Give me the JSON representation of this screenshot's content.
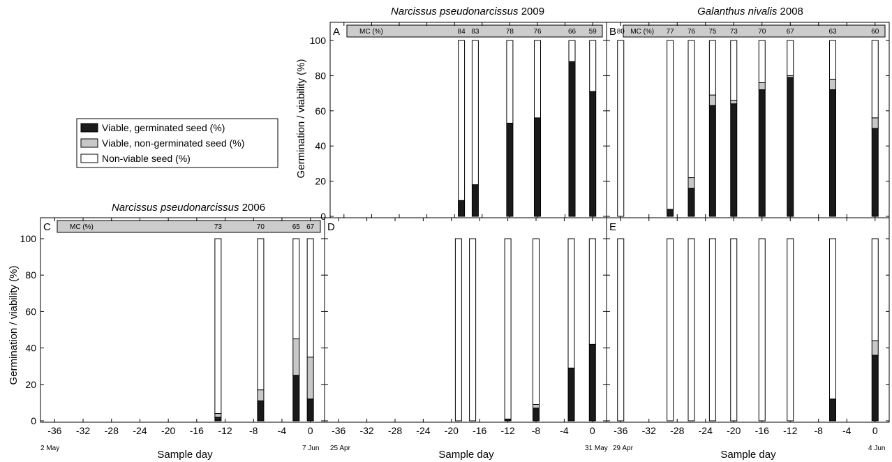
{
  "chart_data": {
    "type": "bar",
    "stack_order": [
      "Viable, germinated seed (%)",
      "Viable, non-germinated seed (%)",
      "Non-viable seed (%)"
    ],
    "colors": {
      "germinated": "#1a1a1a",
      "nongerminated": "#c8c8c8",
      "nonviable": "#ffffff",
      "mcbox": "#cccccc"
    },
    "legend": [
      "Viable, germinated seed (%)",
      "Viable, non-germinated seed (%)",
      "Non-viable seed (%)"
    ],
    "ylabel": "Germination / viability (%)",
    "xlabel": "Sample day",
    "ylim": [
      0,
      100
    ],
    "yticks": [
      0,
      20,
      40,
      60,
      80,
      100
    ],
    "xlim": [
      -38,
      2
    ],
    "xticks": [
      -36,
      -32,
      -28,
      -24,
      -20,
      -16,
      -12,
      -8,
      -4,
      0
    ],
    "titles": {
      "narc2009_species": "Narcissus pseudonarcissus",
      "narc2009_year": "2009",
      "gal2008_species": "Galanthus nivalis",
      "gal2008_year": "2008",
      "narc2006_species": "Narcissus pseudonarcissus",
      "narc2006_year": "2006"
    },
    "panels": [
      {
        "id": "A",
        "mc_label": "MC (%)",
        "mc": [
          {
            "x": -19,
            "v": "84"
          },
          {
            "x": -17,
            "v": "83"
          },
          {
            "x": -12,
            "v": "78"
          },
          {
            "x": -8,
            "v": "76"
          },
          {
            "x": -3,
            "v": "66"
          },
          {
            "x": 0,
            "v": "59"
          }
        ],
        "bars": [
          {
            "x": -19,
            "germinated": 9,
            "nongerminated": 0,
            "nonviable": 91
          },
          {
            "x": -17,
            "germinated": 18,
            "nongerminated": 0,
            "nonviable": 82
          },
          {
            "x": -12,
            "germinated": 53,
            "nongerminated": 0,
            "nonviable": 47
          },
          {
            "x": -8,
            "germinated": 56,
            "nongerminated": 0,
            "nonviable": 44
          },
          {
            "x": -3,
            "germinated": 88,
            "nongerminated": 0,
            "nonviable": 12
          },
          {
            "x": 0,
            "germinated": 71,
            "nongerminated": 0,
            "nonviable": 29
          }
        ]
      },
      {
        "id": "B",
        "mc_label": "MC (%)",
        "mc": [
          {
            "x": -36,
            "v": "80"
          },
          {
            "x": -29,
            "v": "77"
          },
          {
            "x": -26,
            "v": "76"
          },
          {
            "x": -23,
            "v": "75"
          },
          {
            "x": -20,
            "v": "73"
          },
          {
            "x": -16,
            "v": "70"
          },
          {
            "x": -12,
            "v": "67"
          },
          {
            "x": -6,
            "v": "63"
          },
          {
            "x": 0,
            "v": "60"
          }
        ],
        "bars": [
          {
            "x": -36,
            "germinated": 0,
            "nongerminated": 0,
            "nonviable": 100
          },
          {
            "x": -29,
            "germinated": 4,
            "nongerminated": 0,
            "nonviable": 96
          },
          {
            "x": -26,
            "germinated": 16,
            "nongerminated": 6,
            "nonviable": 78
          },
          {
            "x": -23,
            "germinated": 63,
            "nongerminated": 6,
            "nonviable": 31
          },
          {
            "x": -20,
            "germinated": 64,
            "nongerminated": 2,
            "nonviable": 34
          },
          {
            "x": -16,
            "germinated": 72,
            "nongerminated": 4,
            "nonviable": 24
          },
          {
            "x": -12,
            "germinated": 79,
            "nongerminated": 1,
            "nonviable": 20
          },
          {
            "x": -6,
            "germinated": 72,
            "nongerminated": 6,
            "nonviable": 22
          },
          {
            "x": 0,
            "germinated": 50,
            "nongerminated": 6,
            "nonviable": 44
          }
        ]
      },
      {
        "id": "C",
        "mc_label": "MC (%)",
        "mc": [
          {
            "x": -13,
            "v": "73"
          },
          {
            "x": -7,
            "v": "70"
          },
          {
            "x": -2,
            "v": "65"
          },
          {
            "x": 0,
            "v": "67"
          }
        ],
        "bars": [
          {
            "x": -13,
            "germinated": 2,
            "nongerminated": 2,
            "nonviable": 96
          },
          {
            "x": -7,
            "germinated": 11,
            "nongerminated": 6,
            "nonviable": 83
          },
          {
            "x": -2,
            "germinated": 25,
            "nongerminated": 20,
            "nonviable": 55
          },
          {
            "x": 0,
            "germinated": 12,
            "nongerminated": 23,
            "nonviable": 65
          }
        ]
      },
      {
        "id": "D",
        "bars": [
          {
            "x": -19,
            "germinated": 0,
            "nongerminated": 0,
            "nonviable": 100
          },
          {
            "x": -17,
            "germinated": 0,
            "nongerminated": 0,
            "nonviable": 100
          },
          {
            "x": -12,
            "germinated": 1,
            "nongerminated": 0,
            "nonviable": 99
          },
          {
            "x": -8,
            "germinated": 7,
            "nongerminated": 2,
            "nonviable": 91
          },
          {
            "x": -3,
            "germinated": 29,
            "nongerminated": 0,
            "nonviable": 71
          },
          {
            "x": 0,
            "germinated": 42,
            "nongerminated": 0,
            "nonviable": 58
          }
        ]
      },
      {
        "id": "E",
        "bars": [
          {
            "x": -36,
            "germinated": 0,
            "nongerminated": 0,
            "nonviable": 100
          },
          {
            "x": -29,
            "germinated": 0,
            "nongerminated": 0,
            "nonviable": 100
          },
          {
            "x": -26,
            "germinated": 0,
            "nongerminated": 0,
            "nonviable": 100
          },
          {
            "x": -23,
            "germinated": 0,
            "nongerminated": 0,
            "nonviable": 100
          },
          {
            "x": -20,
            "germinated": 0,
            "nongerminated": 0,
            "nonviable": 100
          },
          {
            "x": -16,
            "germinated": 0,
            "nongerminated": 0,
            "nonviable": 100
          },
          {
            "x": -12,
            "germinated": 0,
            "nongerminated": 0,
            "nonviable": 100
          },
          {
            "x": -6,
            "germinated": 12,
            "nongerminated": 0,
            "nonviable": 88
          },
          {
            "x": 0,
            "germinated": 36,
            "nongerminated": 8,
            "nonviable": 56
          }
        ]
      }
    ],
    "date_labels": {
      "C_start": "2 May",
      "C_end": "7 Jun",
      "D_start": "25 Apr",
      "D_end": "31 May",
      "E_start": "29 Apr",
      "E_end": "4 Jun"
    }
  }
}
